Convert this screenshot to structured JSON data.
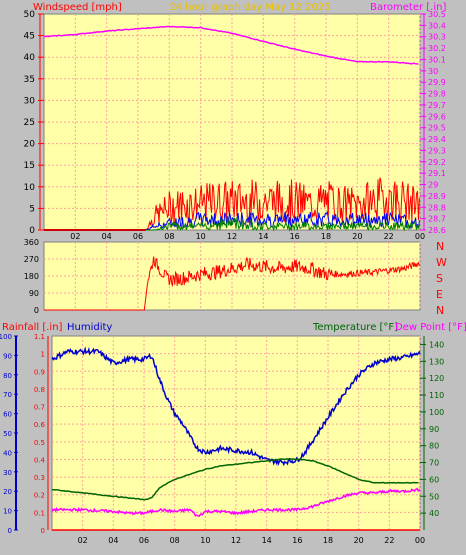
{
  "header": {
    "left_label": "Windspeed [mph]",
    "center_label": "24 hour graph day   May 12 2025",
    "right_label": "Barometer [.in]"
  },
  "colors": {
    "background": "#c0c0c0",
    "plot": "#ffffa8",
    "grid": "#ffa0a0",
    "wind_gust": "#ff0000",
    "wind_avg": "#0000ff",
    "wind_low": "#008000",
    "barometer": "#ff00ff",
    "direction": "#ff0000",
    "humidity": "#0000cc",
    "temperature": "#006400",
    "dew_point": "#ff00ff",
    "rainfall": "#ff0000",
    "gold_text": "#e8c000"
  },
  "chart_data": [
    {
      "type": "line",
      "title": "24 hour graph day   May 12 2025",
      "ylabel": "Windspeed [mph]",
      "y2label": "Barometer [.in]",
      "x_ticks": [
        "02",
        "04",
        "06",
        "08",
        "10",
        "12",
        "14",
        "16",
        "18",
        "20",
        "22",
        "00"
      ],
      "ylim": [
        0,
        50
      ],
      "y_ticks": [
        "0",
        "5",
        "10",
        "15",
        "20",
        "25",
        "30",
        "35",
        "40",
        "45",
        "50"
      ],
      "y2lim": [
        28.6,
        30.5
      ],
      "y2_ticks": [
        "28.6",
        "28.7",
        "28.8",
        "28.9",
        "29",
        "29.1",
        "29.2",
        "29.3",
        "29.4",
        "29.5",
        "29.6",
        "29.7",
        "29.8",
        "29.9",
        "30",
        "30.1",
        "30.2",
        "30.3",
        "30.4",
        "30.5"
      ],
      "series": [
        {
          "axis": "right",
          "x": [
            0,
            2,
            4,
            6,
            8,
            10,
            12,
            14,
            16,
            18,
            20,
            22,
            24
          ],
          "values": [
            30.3,
            30.32,
            30.35,
            30.37,
            30.39,
            30.38,
            30.33,
            30.26,
            30.19,
            30.13,
            30.08,
            30.08,
            30.06
          ]
        },
        {
          "axis": "left",
          "x": [
            0,
            2,
            4,
            6,
            6.5,
            7,
            8,
            9,
            10,
            11,
            12,
            13,
            14,
            15,
            16,
            17,
            18,
            19,
            20,
            21,
            22,
            23,
            24
          ],
          "values": [
            0,
            0,
            0,
            0,
            0,
            4,
            7,
            8,
            8,
            9,
            9,
            9,
            9,
            9,
            9,
            8,
            9,
            8,
            8,
            9,
            10,
            9,
            7
          ]
        },
        {
          "axis": "left",
          "x": [
            0,
            6.5,
            7,
            8,
            10,
            12,
            14,
            16,
            18,
            20,
            22,
            24
          ],
          "values": [
            0,
            0,
            1,
            2,
            3,
            3,
            3,
            3,
            3,
            3,
            3,
            2
          ]
        },
        {
          "axis": "left",
          "x": [
            0,
            6.5,
            7,
            8,
            10,
            12,
            14,
            16,
            18,
            20,
            22,
            24
          ],
          "values": [
            0,
            0,
            0,
            1,
            1,
            2,
            1,
            1,
            1,
            1,
            1,
            1
          ]
        }
      ]
    },
    {
      "type": "line",
      "ylim": [
        0,
        360
      ],
      "y_ticks": [
        "0",
        "90",
        "180",
        "270",
        "360"
      ],
      "y2_ticks": [
        "N",
        "W",
        "S",
        "E",
        "N"
      ],
      "series": [
        {
          "x": [
            0,
            6.4,
            6.6,
            7,
            7.5,
            8,
            9,
            10,
            11,
            12,
            13,
            14,
            15,
            16,
            17,
            18,
            19,
            20,
            21,
            22,
            23,
            24
          ],
          "values": [
            0,
            0,
            150,
            270,
            200,
            160,
            170,
            190,
            200,
            220,
            240,
            230,
            220,
            230,
            220,
            190,
            190,
            195,
            200,
            210,
            220,
            250
          ]
        }
      ]
    },
    {
      "type": "line",
      "ylabel": "Rainfall [.in]",
      "ylabel2": "Humidity",
      "y2label": "Temperature [°F]",
      "y2label2": "Dew Point [°F]",
      "ylim": [
        0,
        100
      ],
      "y_ticks": [
        "0",
        "10",
        "20",
        "30",
        "40",
        "50",
        "60",
        "70",
        "80",
        "90",
        "100"
      ],
      "rain_lim": [
        0,
        1.1
      ],
      "rain_ticks": [
        "0",
        "0.1",
        "0.2",
        "0.3",
        "0.4",
        "0.5",
        "0.6",
        "0.7",
        "0.8",
        "0.9",
        "1",
        "1.1"
      ],
      "y2lim": [
        30,
        145
      ],
      "y2_ticks": [
        "40",
        "50",
        "60",
        "70",
        "80",
        "90",
        "100",
        "110",
        "120",
        "130",
        "140"
      ],
      "series": [
        {
          "axis": "left",
          "x": [
            0,
            1,
            2,
            3,
            4,
            4.5,
            5,
            6,
            6.5,
            7,
            7.5,
            8,
            8.5,
            9,
            9.5,
            10,
            11,
            12,
            13,
            14,
            15,
            16,
            16.5,
            17,
            18,
            19,
            20,
            21,
            22,
            23,
            24
          ],
          "values": [
            88,
            92,
            92,
            92,
            86,
            87,
            88,
            88,
            90,
            78,
            68,
            60,
            55,
            48,
            42,
            40,
            42,
            41,
            40,
            36,
            35,
            36,
            40,
            46,
            58,
            70,
            80,
            86,
            88,
            89,
            91
          ]
        },
        {
          "axis": "right",
          "x": [
            0,
            2,
            4,
            6,
            6.5,
            7,
            8,
            9,
            10,
            11,
            12,
            13,
            14,
            15,
            16,
            17,
            18,
            19,
            20,
            21,
            22,
            23,
            24
          ],
          "values": [
            54,
            52,
            50,
            48,
            49,
            55,
            60,
            63,
            66,
            68,
            69,
            70,
            71,
            72,
            72,
            71,
            68,
            64,
            60,
            58,
            58,
            58,
            58
          ]
        },
        {
          "axis": "right",
          "x": [
            0,
            2,
            4,
            5,
            6,
            7,
            8,
            9,
            9.5,
            10,
            11,
            12,
            13,
            14,
            15,
            16,
            17,
            18,
            19,
            20,
            21,
            22,
            23,
            24
          ],
          "values": [
            42,
            42,
            41,
            40,
            40,
            42,
            41,
            42,
            38,
            41,
            41,
            40,
            41,
            42,
            42,
            42,
            44,
            47,
            50,
            52,
            52,
            53,
            53,
            54
          ]
        },
        {
          "axis": "rain",
          "x": [
            0,
            24
          ],
          "values": [
            0,
            0
          ]
        }
      ]
    }
  ]
}
